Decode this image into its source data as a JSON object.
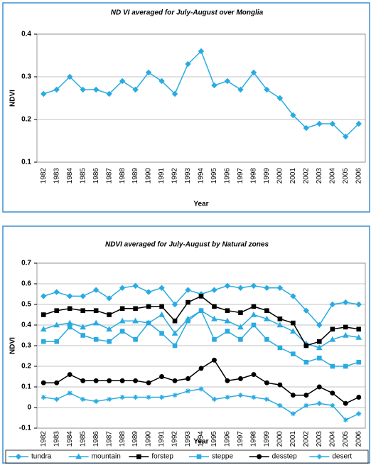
{
  "chart_data": [
    {
      "type": "line",
      "title": "ND VI averaged for July-August over Monglia",
      "x_label": "Year",
      "y_label": "NDVI",
      "categories": [
        "1982",
        "1983",
        "1984",
        "1985",
        "1986",
        "1987",
        "1988",
        "1989",
        "1990",
        "1991",
        "1992",
        "1993",
        "1994",
        "1995",
        "1996",
        "1997",
        "1998",
        "1999",
        "2000",
        "2001",
        "2002",
        "2003",
        "2004",
        "2005",
        "2006"
      ],
      "values": [
        0.26,
        0.27,
        0.3,
        0.27,
        0.27,
        0.26,
        0.29,
        0.27,
        0.31,
        0.29,
        0.26,
        0.33,
        0.36,
        0.28,
        0.29,
        0.27,
        0.31,
        0.27,
        0.25,
        0.21,
        0.18,
        0.19,
        0.19,
        0.16,
        0.19
      ],
      "color": "#29abe2",
      "marker": "diamond",
      "ylim": [
        0.1,
        0.4
      ],
      "yticks": [
        0.1,
        0.2,
        0.3,
        0.4
      ],
      "grid": true
    },
    {
      "type": "line",
      "title": "NDVI averaged for July-August by Natural zones",
      "x_label": "Year",
      "y_label": "NDVI",
      "categories": [
        "1982",
        "1983",
        "1984",
        "1985",
        "1986",
        "1987",
        "1988",
        "1989",
        "1990",
        "1991",
        "1992",
        "1993",
        "1994",
        "1995",
        "1996",
        "1997",
        "1998",
        "1999",
        "2000",
        "2001",
        "2002",
        "2003",
        "2004",
        "2005",
        "2006"
      ],
      "series": [
        {
          "name": "tundra",
          "color": "#29abe2",
          "marker": "diamond",
          "values": [
            0.54,
            0.56,
            0.54,
            0.54,
            0.57,
            0.53,
            0.58,
            0.59,
            0.56,
            0.58,
            0.5,
            0.57,
            0.55,
            0.57,
            0.59,
            0.58,
            0.59,
            0.58,
            0.58,
            0.54,
            0.47,
            0.4,
            0.5,
            0.51,
            0.5
          ]
        },
        {
          "name": "mountain",
          "color": "#29abe2",
          "marker": "triangle",
          "values": [
            0.38,
            0.4,
            0.41,
            0.39,
            0.41,
            0.38,
            0.42,
            0.42,
            0.41,
            0.45,
            0.36,
            0.43,
            0.47,
            0.43,
            0.42,
            0.39,
            0.45,
            0.43,
            0.4,
            0.37,
            0.31,
            0.29,
            0.33,
            0.35,
            0.34
          ]
        },
        {
          "name": "forstep",
          "color": "#000000",
          "marker": "square",
          "values": [
            0.45,
            0.47,
            0.48,
            0.47,
            0.47,
            0.45,
            0.48,
            0.48,
            0.49,
            0.49,
            0.42,
            0.51,
            0.54,
            0.49,
            0.47,
            0.46,
            0.49,
            0.47,
            0.43,
            0.41,
            0.3,
            0.32,
            0.38,
            0.39,
            0.38
          ]
        },
        {
          "name": "steppe",
          "color": "#29abe2",
          "marker": "square",
          "values": [
            0.32,
            0.32,
            0.39,
            0.35,
            0.33,
            0.32,
            0.37,
            0.33,
            0.41,
            0.36,
            0.3,
            0.42,
            0.47,
            0.33,
            0.37,
            0.33,
            0.4,
            0.33,
            0.29,
            0.26,
            0.22,
            0.24,
            0.2,
            0.2,
            0.22
          ]
        },
        {
          "name": "desstep",
          "color": "#000000",
          "marker": "circle",
          "values": [
            0.12,
            0.12,
            0.16,
            0.13,
            0.13,
            0.13,
            0.13,
            0.13,
            0.12,
            0.15,
            0.13,
            0.14,
            0.19,
            0.23,
            0.13,
            0.14,
            0.16,
            0.12,
            0.11,
            0.06,
            0.06,
            0.1,
            0.07,
            0.02,
            0.05
          ]
        },
        {
          "name": "desert",
          "color": "#29abe2",
          "marker": "star",
          "values": [
            0.05,
            0.04,
            0.07,
            0.04,
            0.03,
            0.04,
            0.05,
            0.05,
            0.05,
            0.05,
            0.06,
            0.08,
            0.09,
            0.04,
            0.05,
            0.06,
            0.05,
            0.04,
            0.01,
            -0.03,
            0.01,
            0.02,
            0.01,
            -0.06,
            -0.03
          ]
        }
      ],
      "ylim": [
        -0.1,
        0.7
      ],
      "yticks": [
        -0.1,
        0,
        0.1,
        0.2,
        0.3,
        0.4,
        0.5,
        0.6,
        0.7
      ],
      "grid": true,
      "legend": "bottom"
    }
  ]
}
